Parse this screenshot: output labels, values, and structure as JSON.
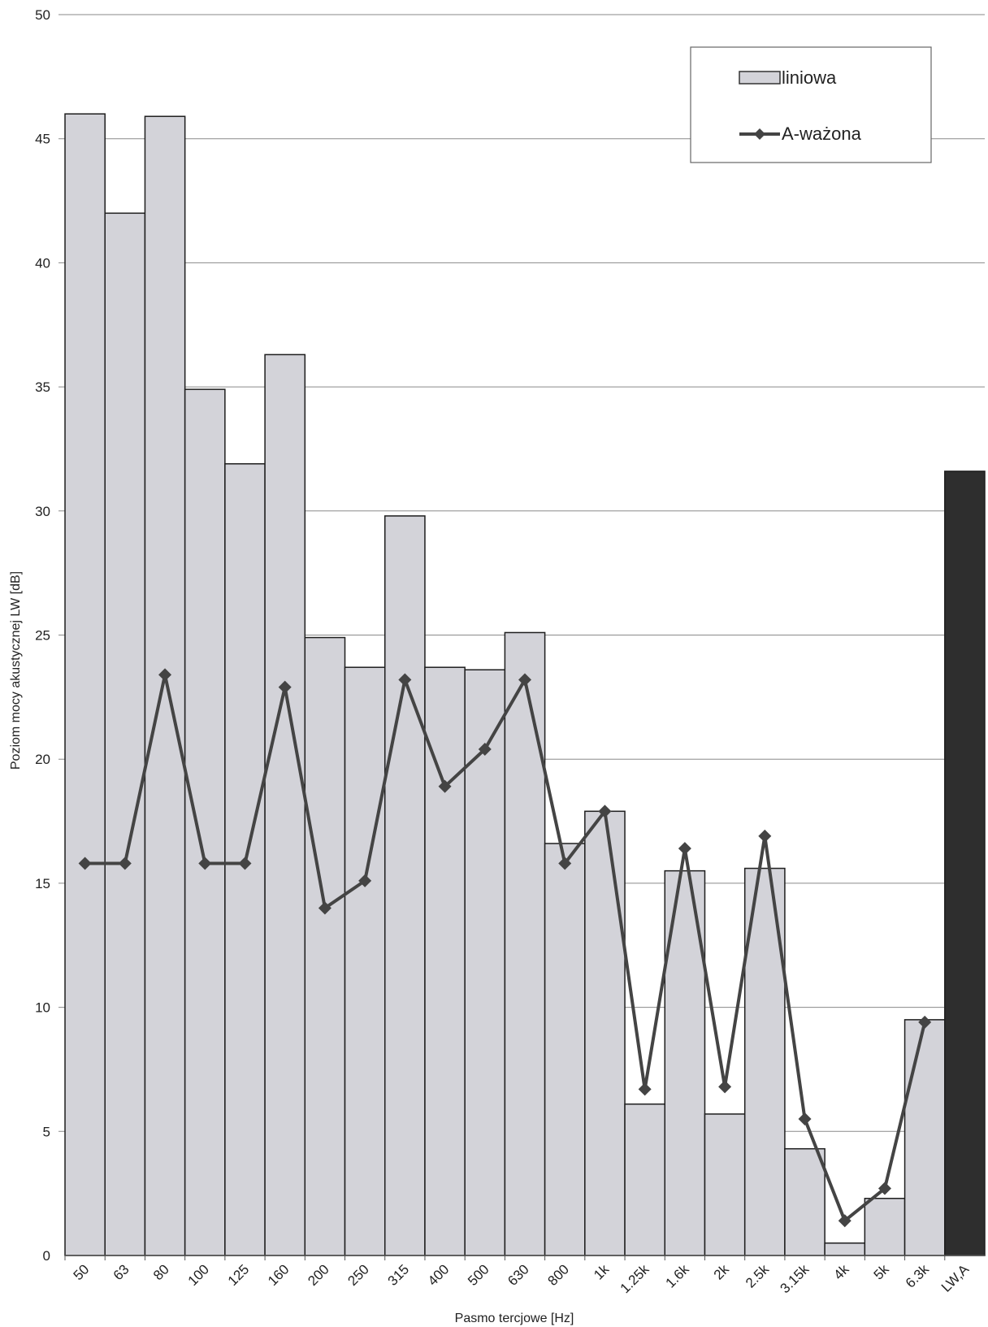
{
  "chart_data": {
    "type": "bar",
    "categories": [
      "50",
      "63",
      "80",
      "100",
      "125",
      "160",
      "200",
      "250",
      "315",
      "400",
      "500",
      "630",
      "800",
      "1k",
      "1.25k",
      "1.6k",
      "2k",
      "2.5k",
      "3.15k",
      "4k",
      "5k",
      "6.3k",
      "LW,A"
    ],
    "series": [
      {
        "name": "liniowa",
        "type": "bar",
        "values": [
          46.0,
          42.0,
          45.9,
          34.9,
          31.9,
          36.3,
          24.9,
          23.7,
          29.8,
          23.7,
          23.6,
          25.1,
          16.6,
          17.9,
          6.1,
          15.5,
          5.7,
          15.6,
          4.3,
          0.5,
          2.3,
          9.5,
          null
        ],
        "color": "#d3d3d9"
      },
      {
        "name": "A-ważona",
        "type": "line",
        "values": [
          15.8,
          15.8,
          23.4,
          15.8,
          15.8,
          22.9,
          14.0,
          15.1,
          23.2,
          18.9,
          20.4,
          23.2,
          15.8,
          17.9,
          6.7,
          16.4,
          6.8,
          16.9,
          5.5,
          1.4,
          2.7,
          9.4,
          null
        ],
        "color": "#444444"
      },
      {
        "name": "LW,A",
        "type": "bar",
        "values": [
          null,
          null,
          null,
          null,
          null,
          null,
          null,
          null,
          null,
          null,
          null,
          null,
          null,
          null,
          null,
          null,
          null,
          null,
          null,
          null,
          null,
          null,
          31.6
        ],
        "color": "#2e2e2e"
      }
    ],
    "xlabel": "Pasmo tercjowe [Hz]",
    "ylabel": "Poziom mocy akustycznej LW [dB]",
    "ylim": [
      0,
      50
    ],
    "yticks": [
      0,
      5,
      10,
      15,
      20,
      25,
      30,
      35,
      40,
      45,
      50
    ],
    "grid": true,
    "legend": {
      "placement": "top-right",
      "entries": [
        "liniowa",
        "A-ważona"
      ]
    }
  }
}
